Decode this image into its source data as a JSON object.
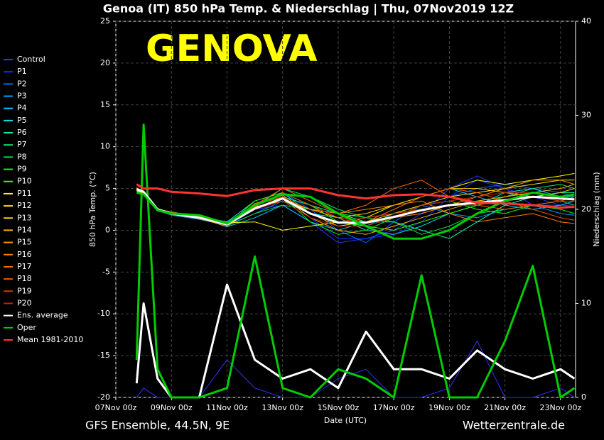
{
  "chart_data": {
    "type": "line",
    "title": "Genoa  (IT)  850 hPa Temp. & Niederschlag | Thu, 07Nov2019 12Z",
    "annotation": "GENOVA",
    "ylabel": "850 hPa Temp. (°C)",
    "y2label": "Niederschlag (mm)",
    "xlabel": "Date (UTC)",
    "footer_left": "GFS Ensemble, 44.5N, 9E",
    "footer_right": "Wetterzentrale.de",
    "grid": true,
    "legend": "left",
    "xlim": [
      0,
      16.54
    ],
    "xticks": [
      {
        "value": 0,
        "label": "07Nov 00z"
      },
      {
        "value": 2,
        "label": "09Nov 00z"
      },
      {
        "value": 4,
        "label": "11Nov 00z"
      },
      {
        "value": 6,
        "label": "13Nov 00z"
      },
      {
        "value": 8,
        "label": "15Nov 00z"
      },
      {
        "value": 10,
        "label": "17Nov 00z"
      },
      {
        "value": 12,
        "label": "19Nov 00z"
      },
      {
        "value": 14,
        "label": "21Nov 00z"
      },
      {
        "value": 16,
        "label": "23Nov 00z"
      }
    ],
    "ylim": [
      -20,
      25
    ],
    "yticks": [
      -20,
      -15,
      -10,
      -5,
      0,
      5,
      10,
      15,
      20,
      25
    ],
    "y2lim": [
      0,
      40
    ],
    "y2ticks": [
      0,
      10,
      20,
      30,
      40
    ],
    "x": [
      0.75,
      1,
      1.5,
      2,
      3,
      4,
      5,
      6,
      7,
      8,
      9,
      10,
      11,
      12,
      13,
      14,
      15,
      16,
      16.5
    ],
    "series": [
      {
        "name": "Control",
        "color": "#3030ff",
        "width": 1,
        "values": [
          5,
          4.7,
          2.4,
          2,
          1.6,
          0.5,
          2.5,
          3,
          1,
          -1.5,
          -1,
          0,
          2,
          5,
          6.5,
          5,
          3,
          3,
          2.8
        ],
        "precip": [
          0,
          1,
          0,
          0,
          0,
          4,
          1,
          0,
          0,
          2,
          3,
          0,
          0,
          1,
          6,
          0,
          0,
          1,
          0
        ]
      },
      {
        "name": "P1",
        "color": "#0033ff",
        "width": 1,
        "values": [
          4.8,
          4.5,
          2.5,
          2.2,
          1.4,
          0.8,
          3,
          4,
          1.5,
          -1,
          -1,
          -0.5,
          1,
          4,
          6,
          5,
          4,
          3,
          3
        ]
      },
      {
        "name": "P2",
        "color": "#0066ff",
        "width": 1,
        "values": [
          5,
          4.6,
          2.6,
          2,
          1.5,
          1,
          2.8,
          4.5,
          2.5,
          0,
          -1.5,
          1,
          3,
          4,
          5,
          5.5,
          5,
          4.5,
          4
        ]
      },
      {
        "name": "P3",
        "color": "#0099ff",
        "width": 1,
        "values": [
          4.9,
          4.4,
          2.4,
          1.8,
          1.3,
          0.6,
          2,
          3.5,
          2,
          1,
          0.5,
          2,
          3,
          2,
          1.5,
          2.5,
          3,
          2,
          1.8
        ]
      },
      {
        "name": "P4",
        "color": "#00ccff",
        "width": 1,
        "values": [
          5.1,
          4.6,
          2.5,
          2.1,
          1.5,
          0.4,
          1.5,
          3,
          1,
          0,
          1,
          2.5,
          4,
          5,
          4,
          3,
          2.5,
          3,
          3.5
        ]
      },
      {
        "name": "P5",
        "color": "#00e5e5",
        "width": 1,
        "values": [
          5,
          4.5,
          2.3,
          1.9,
          1.7,
          1,
          3.5,
          4.5,
          2,
          1.5,
          0,
          -0.5,
          0.5,
          2,
          3,
          4.5,
          5,
          4,
          4
        ]
      },
      {
        "name": "P6",
        "color": "#00ffaa",
        "width": 1,
        "values": [
          4.8,
          4.4,
          2.6,
          2,
          1.4,
          0.9,
          3,
          4,
          3,
          2,
          1,
          1,
          0,
          -1,
          1,
          3,
          4,
          4.5,
          4.5
        ]
      },
      {
        "name": "P7",
        "color": "#00ee77",
        "width": 1,
        "values": [
          5,
          4.7,
          2.5,
          2.2,
          1.6,
          0.7,
          2.8,
          5,
          4,
          2.5,
          1.5,
          2,
          2.5,
          3,
          3.5,
          4,
          5,
          5.5,
          5
        ]
      },
      {
        "name": "P8",
        "color": "#00dd44",
        "width": 1,
        "values": [
          4.9,
          4.5,
          2.4,
          2,
          1.5,
          0.5,
          2,
          3,
          2.5,
          2,
          1.5,
          1,
          -0.5,
          0.5,
          2,
          2.5,
          3,
          3.5,
          3
        ]
      },
      {
        "name": "P9",
        "color": "#00ff00",
        "width": 1,
        "values": [
          5,
          4.6,
          2.5,
          1.9,
          1.4,
          0.8,
          3,
          4,
          1,
          -0.5,
          0,
          1.5,
          3,
          3.5,
          2.5,
          2,
          3,
          2.5,
          2
        ]
      },
      {
        "name": "P10",
        "color": "#33ff00",
        "width": 1,
        "values": [
          5,
          4.5,
          2.6,
          2.1,
          1.5,
          0.6,
          3.5,
          4.5,
          3,
          1,
          0.5,
          0,
          1,
          2,
          3,
          4,
          4.5,
          4,
          4.2
        ]
      },
      {
        "name": "P11",
        "color": "#ffff00",
        "width": 1,
        "values": [
          4.7,
          4.4,
          2.4,
          2,
          1.6,
          0.9,
          1,
          0,
          0.5,
          1,
          1.5,
          3,
          4,
          5,
          6,
          5.5,
          6,
          6.5,
          6.8
        ]
      },
      {
        "name": "P12",
        "color": "#ffe000",
        "width": 1,
        "values": [
          5,
          4.6,
          2.5,
          2,
          1.5,
          0.7,
          2.5,
          4,
          2,
          0.5,
          1,
          2,
          3,
          4,
          4.5,
          5,
          5.5,
          6,
          6
        ]
      },
      {
        "name": "P13",
        "color": "#ffcc00",
        "width": 1,
        "values": [
          4.9,
          4.5,
          2.5,
          1.9,
          1.4,
          0.5,
          2.8,
          3.5,
          2.5,
          1.5,
          2,
          3,
          4,
          5,
          5,
          4.5,
          4,
          4.5,
          5
        ]
      },
      {
        "name": "P14",
        "color": "#ffb000",
        "width": 1,
        "values": [
          5,
          4.7,
          2.4,
          2.1,
          1.5,
          0.8,
          3,
          4,
          1.5,
          0,
          -0.5,
          0.5,
          1.5,
          2.5,
          3.5,
          4,
          4.5,
          5,
          5.5
        ]
      },
      {
        "name": "P15",
        "color": "#ff9900",
        "width": 1,
        "values": [
          5.1,
          4.6,
          2.6,
          2,
          1.6,
          0.6,
          3.2,
          4.2,
          2,
          1,
          1,
          1.5,
          2,
          3,
          4,
          5,
          6,
          6,
          5.5
        ]
      },
      {
        "name": "P16",
        "color": "#ff8000",
        "width": 1,
        "values": [
          4.8,
          4.5,
          2.5,
          2,
          1.4,
          0.7,
          2.5,
          3.8,
          2.5,
          2,
          2.5,
          3,
          3.5,
          2,
          1,
          1.5,
          2,
          1,
          0.8
        ]
      },
      {
        "name": "P17",
        "color": "#ff6600",
        "width": 1,
        "values": [
          5,
          4.4,
          2.5,
          2.2,
          1.5,
          0.9,
          3,
          5,
          3.5,
          2,
          3,
          5,
          6,
          4,
          3,
          2.5,
          3,
          3.5,
          4
        ]
      },
      {
        "name": "P18",
        "color": "#ee5500",
        "width": 1,
        "values": [
          4.9,
          4.6,
          2.4,
          1.9,
          1.6,
          0.5,
          2.8,
          4.5,
          3,
          1.5,
          1,
          2.5,
          4,
          5,
          4.5,
          3.5,
          2.5,
          1.5,
          1.2
        ]
      },
      {
        "name": "P19",
        "color": "#dd3300",
        "width": 1,
        "values": [
          5,
          4.5,
          2.6,
          2,
          1.5,
          0.8,
          3,
          4,
          2,
          1,
          1.5,
          2,
          2.5,
          3,
          3,
          3.5,
          4,
          3.5,
          3.5
        ]
      },
      {
        "name": "P20",
        "color": "#cc2200",
        "width": 1,
        "values": [
          5,
          4.6,
          2.5,
          2.1,
          1.4,
          0.6,
          2.5,
          3.5,
          1.5,
          0.5,
          0.5,
          1.5,
          3,
          3.5,
          4,
          4.5,
          4.5,
          4,
          3.8
        ]
      },
      {
        "name": "Ens. average",
        "color": "#ffffff",
        "width": 3,
        "values": [
          4.9,
          4.6,
          2.5,
          2,
          1.5,
          0.7,
          2.6,
          3.8,
          2,
          0.9,
          0.9,
          1.6,
          2.4,
          3,
          3.3,
          3.6,
          4,
          3.8,
          3.7
        ],
        "precip": [
          1.5,
          10,
          2,
          0,
          0,
          12,
          4,
          2,
          3,
          1,
          7,
          3,
          3,
          2,
          5,
          3,
          2,
          3,
          2
        ]
      },
      {
        "name": "Oper",
        "color": "#00cc00",
        "width": 3,
        "values": [
          4.5,
          4.3,
          2.4,
          2,
          1.8,
          0.8,
          3,
          4.3,
          4,
          2,
          0.5,
          -1,
          -1,
          0,
          2,
          3.5,
          4.5,
          4,
          4.3
        ],
        "precip": [
          4,
          29,
          3,
          0,
          0,
          1,
          15,
          1,
          0,
          3,
          2,
          0,
          13,
          0,
          0,
          6,
          14,
          0,
          1
        ]
      },
      {
        "name": "Mean 1981-2010",
        "color": "#ff3333",
        "width": 3,
        "values": [
          5.5,
          5,
          5,
          4.6,
          4.4,
          4.1,
          4.8,
          5,
          5,
          4.2,
          3.8,
          4.2,
          4.3,
          4,
          3.3,
          3.2,
          3,
          2.7,
          2.8
        ]
      }
    ]
  }
}
